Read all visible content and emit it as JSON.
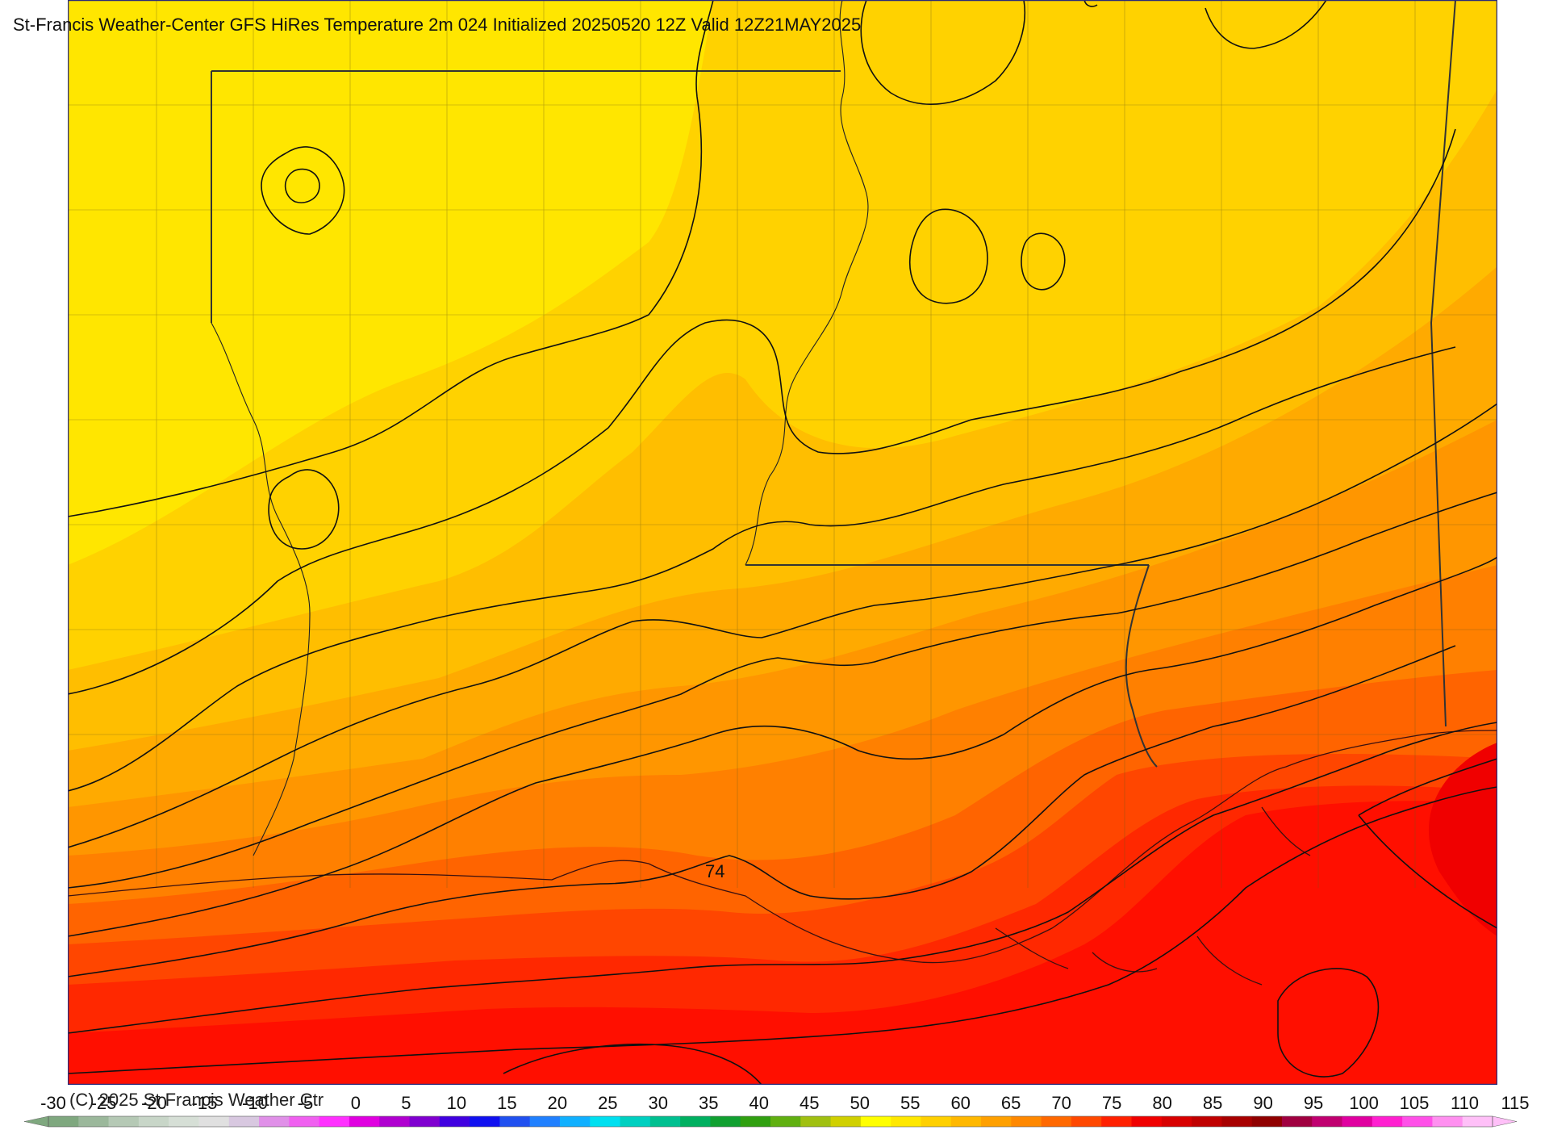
{
  "title": "St-Francis Weather-Center GFS HiRes Temperature 2m  024 Initialized 20250520 12Z Valid 12Z21MAY2025",
  "copyright": "(C) 2025 St Francis Weather Ctr",
  "contour_label": "74",
  "colorbar": {
    "ticks": [
      "-30",
      "-25",
      "-20",
      "-15",
      "-10",
      "-5",
      "0",
      "5",
      "10",
      "15",
      "20",
      "25",
      "30",
      "35",
      "40",
      "45",
      "50",
      "55",
      "60",
      "65",
      "70",
      "75",
      "80",
      "85",
      "90",
      "95",
      "100",
      "105",
      "110",
      "115"
    ],
    "colors": [
      "#7fa87f",
      "#9bb89b",
      "#b5c9b5",
      "#c8d6c8",
      "#d6dfd6",
      "#e0e0e0",
      "#d8c8e0",
      "#e090e8",
      "#f060f0",
      "#ff30ff",
      "#e000e0",
      "#b000d0",
      "#8000d0",
      "#4000e0",
      "#1010f0",
      "#2050f0",
      "#2080ff",
      "#10b0ff",
      "#00e0f0",
      "#00d0c0",
      "#00c090",
      "#00b060",
      "#10a030",
      "#30a010",
      "#60b010",
      "#a0c010",
      "#d0d000",
      "#ffff00",
      "#ffe800",
      "#ffd000",
      "#ffb800",
      "#ffa000",
      "#ff8800",
      "#ff6800",
      "#ff4800",
      "#ff2000",
      "#f00000",
      "#d80000",
      "#c00000",
      "#a80000",
      "#900000",
      "#a00040",
      "#c00070",
      "#e000a0",
      "#ff20d0",
      "#ff50e8",
      "#ff90f0",
      "#ffc0f8"
    ]
  },
  "temperature_bands": [
    "#ffe600",
    "#ffd200",
    "#ffbe00",
    "#ffaa00",
    "#ff9600",
    "#ff8000",
    "#ff6400",
    "#ff4600",
    "#ff2800",
    "#ff0f00",
    "#f00000"
  ]
}
